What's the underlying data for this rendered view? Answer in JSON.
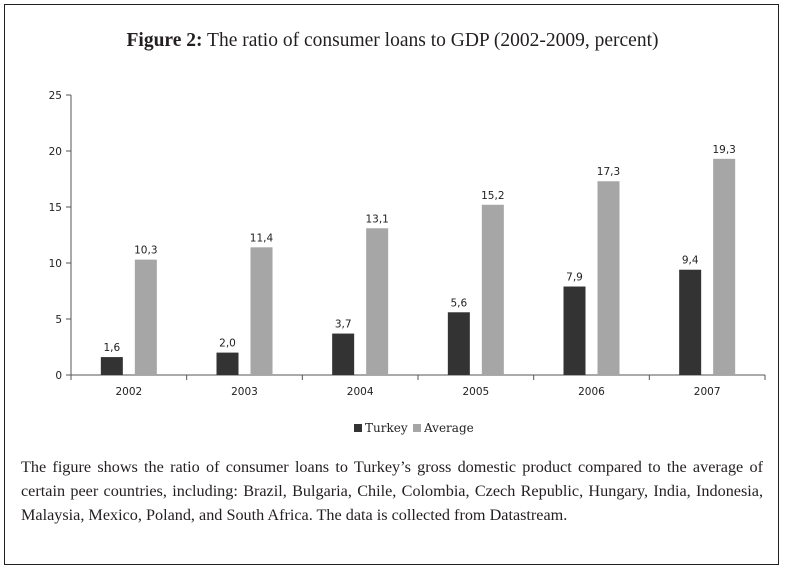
{
  "figure": {
    "label": "Figure 2:",
    "title": "The ratio of consumer loans to GDP (2002-2009, percent)"
  },
  "caption": "The figure shows the ratio of consumer loans to Turkey’s gross domestic product compared to the average of certain peer countries, including: Brazil, Bulgaria, Chile, Colombia, Czech Republic, Hungary, India, Indonesia, Malaysia, Mexico, Poland, and South Africa. The data is collected from Datastream.",
  "chart_data": {
    "type": "bar",
    "categories": [
      "2002",
      "2003",
      "2004",
      "2005",
      "2006",
      "2007"
    ],
    "series": [
      {
        "name": "Turkey",
        "values": [
          1.6,
          2.0,
          3.7,
          5.6,
          7.9,
          9.4
        ],
        "labels": [
          "1,6",
          "2,0",
          "3,7",
          "5,6",
          "7,9",
          "9,4"
        ],
        "color": "#333333"
      },
      {
        "name": "Average",
        "values": [
          10.3,
          11.4,
          13.1,
          15.2,
          17.3,
          19.3
        ],
        "labels": [
          "10,3",
          "11,4",
          "13,1",
          "15,2",
          "17,3",
          "19,3"
        ],
        "color": "#a6a6a6"
      }
    ],
    "yticks": [
      0,
      5,
      10,
      15,
      20,
      25
    ],
    "ylim": [
      0,
      25
    ],
    "grid": false,
    "legend_position": "bottom"
  }
}
